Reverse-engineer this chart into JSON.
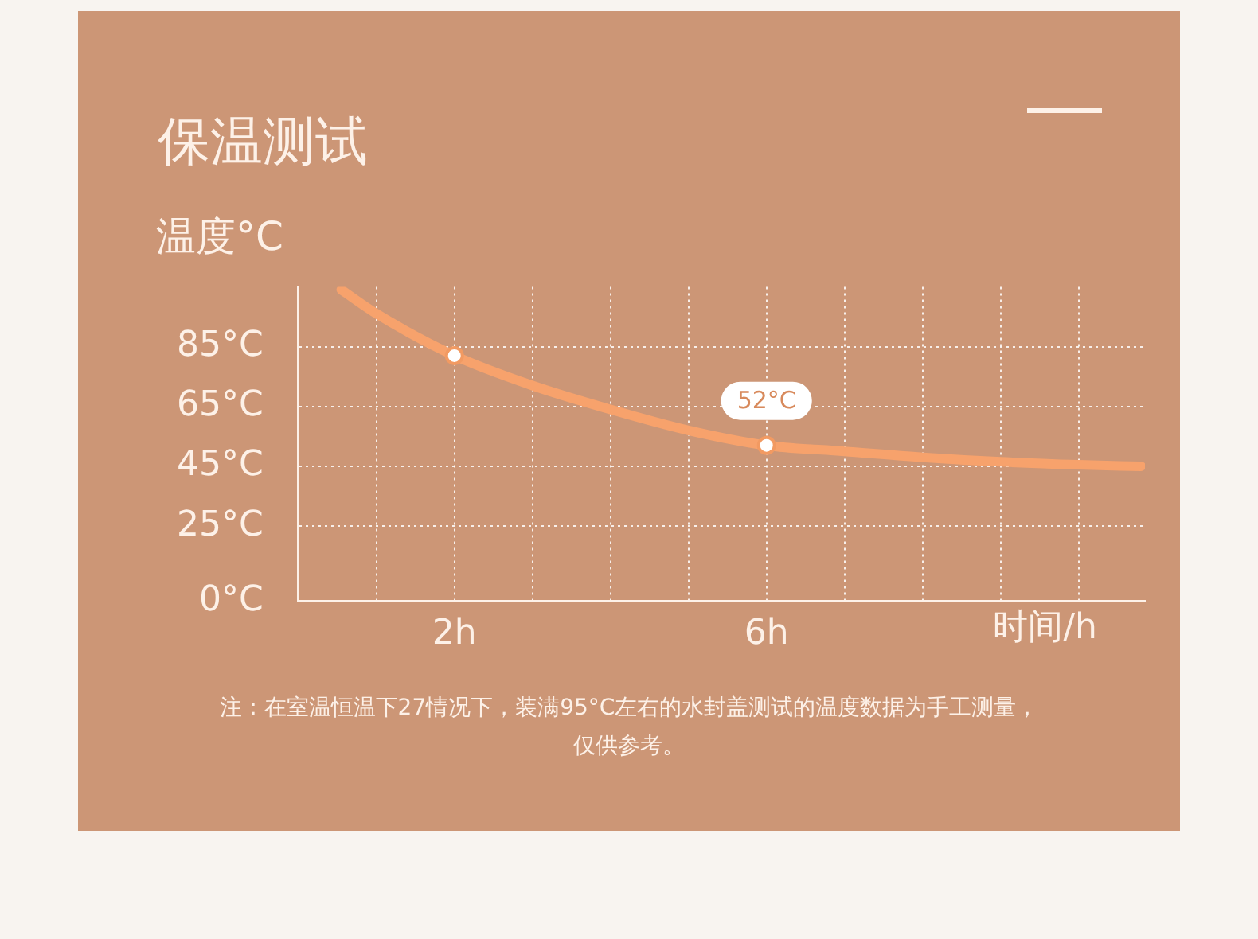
{
  "chart_data": {
    "type": "line",
    "title": "保温测试",
    "ylabel": "温度°C",
    "xlabel": "时间/h",
    "xlim": [
      0,
      10.85
    ],
    "xticks": [
      {
        "value": 1,
        "label": null
      },
      {
        "value": 2,
        "label": "2h"
      },
      {
        "value": 3,
        "label": null
      },
      {
        "value": 4,
        "label": null
      },
      {
        "value": 5,
        "label": null
      },
      {
        "value": 6,
        "label": "6h"
      },
      {
        "value": 7,
        "label": null
      },
      {
        "value": 8,
        "label": null
      },
      {
        "value": 9,
        "label": null
      },
      {
        "value": 10,
        "label": null
      }
    ],
    "ylim": [
      0,
      105
    ],
    "yticks": [
      {
        "value": 0,
        "label": "0°C"
      },
      {
        "value": 25,
        "label": "25°C"
      },
      {
        "value": 45,
        "label": "45°C"
      },
      {
        "value": 65,
        "label": "65°C"
      },
      {
        "value": 85,
        "label": "85°C"
      }
    ],
    "grid": true,
    "legend": false,
    "line_style": "solid",
    "marker": "none",
    "series": [
      {
        "color": "#f7a26c",
        "x": [
          0.55,
          1,
          2,
          3,
          4,
          5,
          6,
          7,
          8,
          9,
          10,
          10.8
        ],
        "values": [
          104,
          96,
          82,
          72,
          64,
          57,
          52,
          50,
          48,
          46.5,
          45.5,
          45
        ]
      },
      {
        "type": "scatter",
        "color": "#f29a62",
        "marker": "circle",
        "x": [
          2,
          6
        ],
        "values": [
          82,
          52
        ]
      }
    ],
    "annotations": [
      {
        "text": "52°C",
        "x": 6,
        "y": 52
      },
      "注：在室温恒温下27情况下，装满95°C左右的水封盖测试的温度数据为手工测量，仅供参考。"
    ]
  }
}
